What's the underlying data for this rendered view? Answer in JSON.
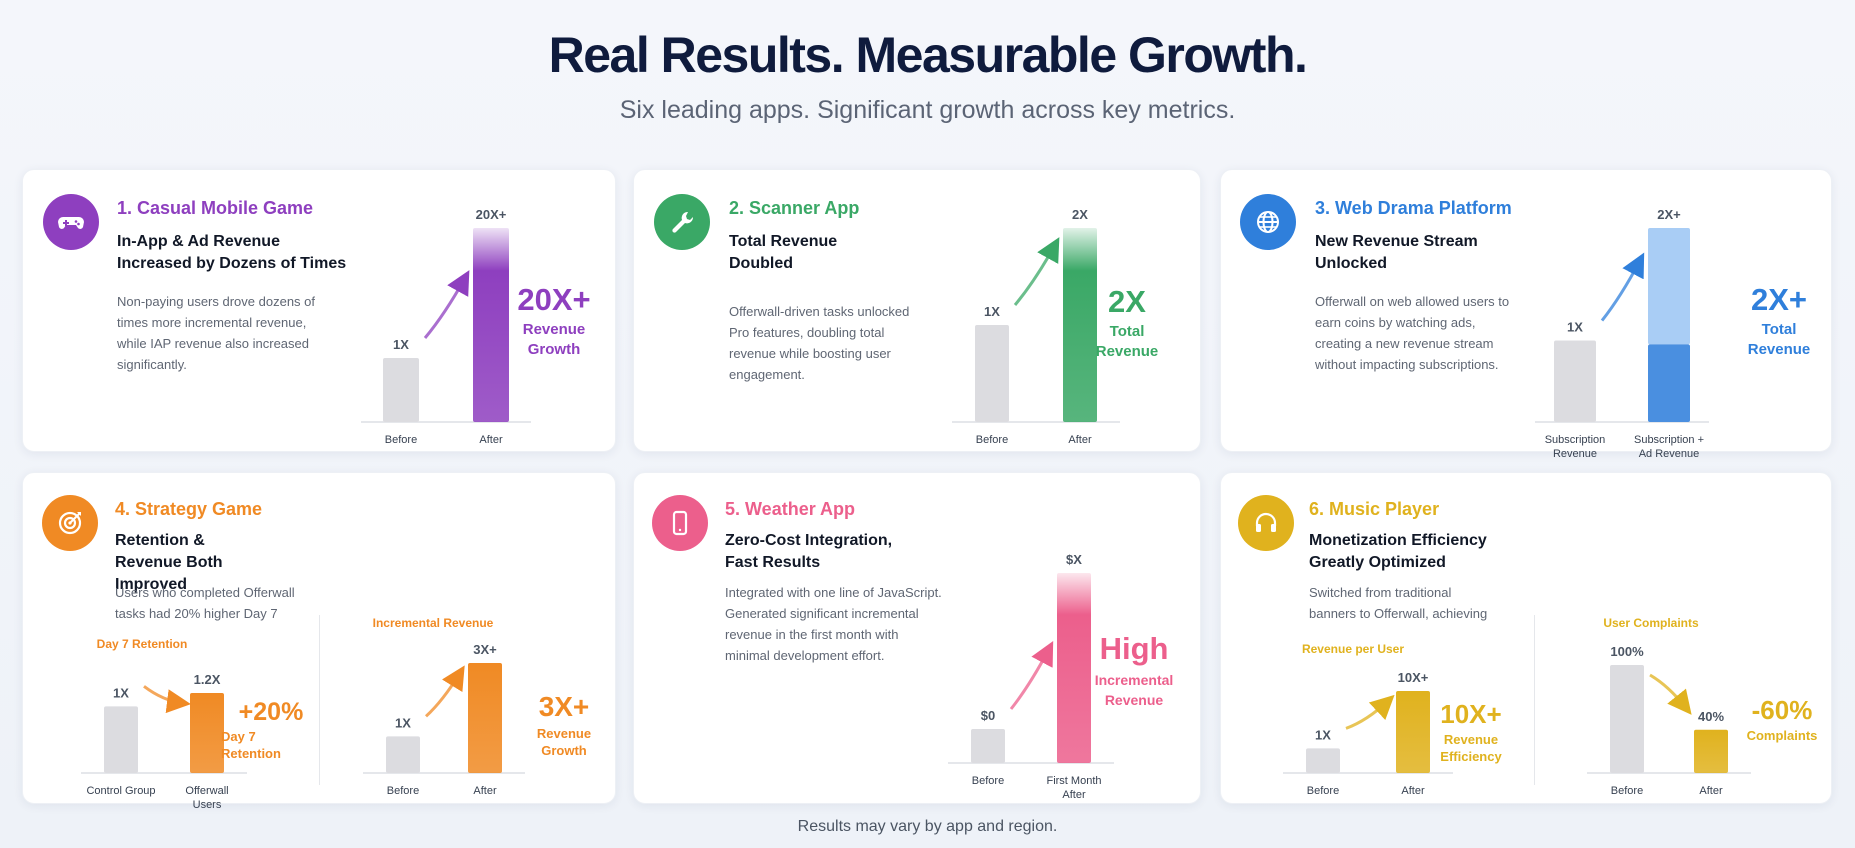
{
  "header": {
    "title": "Real Results. Measurable Growth.",
    "subtitle": "Six leading apps. Significant growth across key metrics."
  },
  "footer": "Results may vary by app and region.",
  "colors": {
    "purple": "#8e3fbf",
    "green": "#3aa866",
    "blue": "#2f7fdb",
    "orange": "#f08a24",
    "pink": "#ec5f8c",
    "gold": "#e0b21e",
    "gray_bar": "#dcdce0"
  },
  "cards": [
    {
      "icon": "gamepad-icon",
      "title": "1. Casual Mobile Game",
      "headline": "In-App & Ad Revenue Increased by Dozens of Times",
      "description": "Non-paying users drove dozens of times more incremental revenue, while IAP revenue also increased significantly.",
      "stat_value": "20X+",
      "stat_label": "Revenue Growth"
    },
    {
      "icon": "wrench-icon",
      "title": "2. Scanner App",
      "headline": "Total Revenue Doubled",
      "description": "Offerwall-driven tasks unlocked Pro features, doubling total revenue while boosting user engagement.",
      "stat_value": "2X",
      "stat_label": "Total Revenue"
    },
    {
      "icon": "globe-icon",
      "title": "3. Web Drama Platform",
      "headline": "New Revenue Stream Unlocked",
      "description": "Offerwall on web allowed users to earn coins by watching ads, creating a new revenue stream without impacting subscriptions.",
      "stat_value": "2X+",
      "stat_label": "Total Revenue"
    },
    {
      "icon": "target-icon",
      "title": "4. Strategy Game",
      "headline": "Retention & Revenue Both Improved",
      "description": "Users who completed Offerwall tasks had 20% higher Day 7",
      "stat_value": "+20%",
      "stat_label": "Day 7 Retention",
      "stat_value_2": "3X+",
      "stat_label_2": "Revenue Growth"
    },
    {
      "icon": "smartphone-icon",
      "title": "5. Weather App",
      "headline": "Zero-Cost Integration, Fast Results",
      "description": "Integrated with one line of JavaScript. Generated significant incremental revenue in the first month with minimal development effort.",
      "stat_value": "High",
      "stat_label": "Incremental Revenue"
    },
    {
      "icon": "headphones-icon",
      "title": "6. Music Player",
      "headline": "Monetization Efficiency Greatly Optimized",
      "description": "Switched from traditional banners to Offerwall, achieving ",
      "stat_value": "10X+",
      "stat_label": "Revenue Efficiency",
      "stat_value_2": "-60%",
      "stat_label_2": "Complaints"
    }
  ],
  "chart_data": [
    {
      "type": "bar",
      "title": "",
      "categories": [
        "Before",
        "After"
      ],
      "values": [
        1,
        20
      ],
      "bar_labels": [
        "1X",
        "20X+"
      ],
      "color": "#8e3fbf"
    },
    {
      "type": "bar",
      "title": "",
      "categories": [
        "Before",
        "After"
      ],
      "values": [
        1,
        2
      ],
      "bar_labels": [
        "1X",
        "2X"
      ],
      "color": "#3aa866"
    },
    {
      "type": "bar",
      "title": "",
      "categories": [
        "Subscription Revenue",
        "Subscription + Ad Revenue"
      ],
      "values": [
        1,
        2
      ],
      "bar_labels": [
        "1X",
        "2X+"
      ],
      "stacked_segments": {
        "subscription": 1,
        "ad_revenue": 1
      },
      "segment_labels": [
        "Subscription",
        "Ad Revenue"
      ],
      "color": "#2f7fdb"
    },
    {
      "type": "bar",
      "title": "Day 7 Retention",
      "categories": [
        "Control Group",
        "Offerwall Users"
      ],
      "values": [
        1,
        1.2
      ],
      "bar_labels": [
        "1X",
        "1.2X"
      ],
      "color": "#f08a24"
    },
    {
      "type": "bar",
      "title": "Incremental Revenue",
      "categories": [
        "Before",
        "After"
      ],
      "values": [
        1,
        3
      ],
      "bar_labels": [
        "1X",
        "3X+"
      ],
      "color": "#f08a24"
    },
    {
      "type": "bar",
      "title": "",
      "categories": [
        "Before",
        "First Month After"
      ],
      "values": [
        0,
        1
      ],
      "bar_labels": [
        "$0",
        "$X"
      ],
      "color": "#ec5f8c"
    },
    {
      "type": "bar",
      "title": "Revenue per User",
      "categories": [
        "Before",
        "After"
      ],
      "values": [
        1,
        10
      ],
      "bar_labels": [
        "1X",
        "10X+"
      ],
      "color": "#e0b21e"
    },
    {
      "type": "bar",
      "title": "User Complaints",
      "categories": [
        "Before",
        "After"
      ],
      "values": [
        100,
        40
      ],
      "bar_labels": [
        "100%",
        "40%"
      ],
      "color": "#e0b21e"
    }
  ]
}
